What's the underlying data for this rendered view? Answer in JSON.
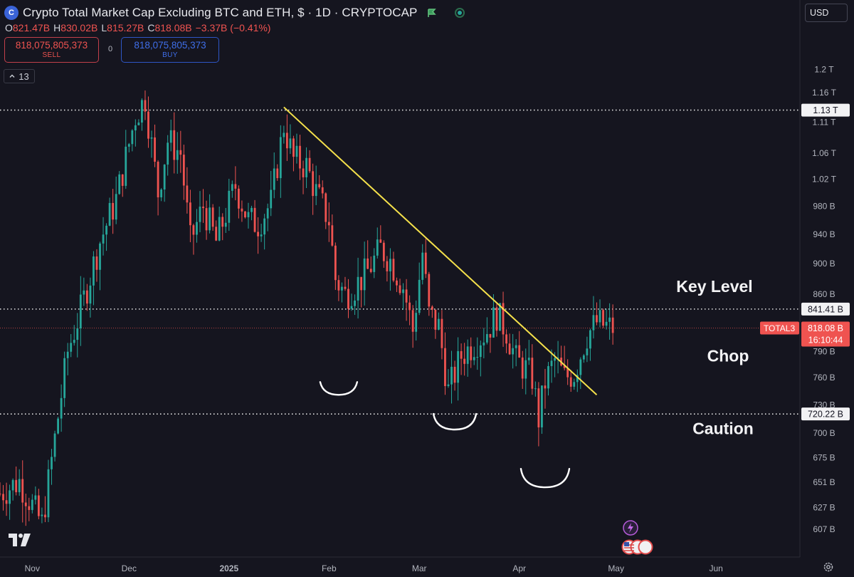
{
  "header": {
    "title": "Crypto Total Market Cap Excluding BTC and ETH, $ · 1D · CRYPTOCAP",
    "logo_letter": "C"
  },
  "ohlc": {
    "o_label": "O",
    "o": "821.47B",
    "h_label": "H",
    "h": "830.02B",
    "l_label": "L",
    "l": "815.27B",
    "c_label": "C",
    "c": "818.08B",
    "change": "−3.37B (−0.41%)"
  },
  "trade": {
    "sell_price": "818,075,805,373",
    "sell_label": "SELL",
    "spread": "0",
    "buy_price": "818,075,805,373",
    "buy_label": "BUY"
  },
  "indicators": {
    "count": "13"
  },
  "currency": {
    "label": "USD"
  },
  "colors": {
    "background": "#15151f",
    "up": "#26a69a",
    "down": "#ef5350",
    "trendline": "#f5e14b",
    "level_line": "#e6e6e6",
    "last_price": "#ef5350"
  },
  "chart_data": {
    "type": "candlestick",
    "title": "Crypto Total Market Cap Excluding BTC and ETH, $ · 1D · CRYPTOCAP",
    "xlabel": "",
    "ylabel": "",
    "y_scale": "log",
    "ylim": [
      590,
      1270
    ],
    "y_ticks": [
      {
        "v": 1200,
        "label": "1.2 T"
      },
      {
        "v": 1160,
        "label": "1.16 T"
      },
      {
        "v": 1110,
        "label": "1.11 T"
      },
      {
        "v": 1060,
        "label": "1.06 T"
      },
      {
        "v": 1020,
        "label": "1.02 T"
      },
      {
        "v": 980,
        "label": "980 B"
      },
      {
        "v": 940,
        "label": "940 B"
      },
      {
        "v": 900,
        "label": "900 B"
      },
      {
        "v": 860,
        "label": "860 B"
      },
      {
        "v": 790,
        "label": "790 B"
      },
      {
        "v": 760,
        "label": "760 B"
      },
      {
        "v": 730,
        "label": "730 B"
      },
      {
        "v": 700,
        "label": "700 B"
      },
      {
        "v": 675,
        "label": "675 B"
      },
      {
        "v": 651,
        "label": "651 B"
      },
      {
        "v": 627,
        "label": "627 B"
      },
      {
        "v": 607,
        "label": "607 B"
      }
    ],
    "x_ticks": [
      {
        "date": "2024-11-01",
        "label": "Nov",
        "bold": false
      },
      {
        "date": "2024-12-01",
        "label": "Dec",
        "bold": false
      },
      {
        "date": "2025-01-01",
        "label": "2025",
        "bold": true
      },
      {
        "date": "2025-02-01",
        "label": "Feb",
        "bold": false
      },
      {
        "date": "2025-03-01",
        "label": "Mar",
        "bold": false
      },
      {
        "date": "2025-04-01",
        "label": "Apr",
        "bold": false
      },
      {
        "date": "2025-05-01",
        "label": "May",
        "bold": false
      },
      {
        "date": "2025-06-01",
        "label": "Jun",
        "bold": false
      }
    ],
    "x_range": [
      "2024-10-22",
      "2025-06-27"
    ],
    "key_points": [
      {
        "date": "2024-10-22",
        "close": 640
      },
      {
        "date": "2024-10-28",
        "close": 652
      },
      {
        "date": "2024-11-04",
        "close": 612
      },
      {
        "date": "2024-11-06",
        "close": 651
      },
      {
        "date": "2024-11-12",
        "close": 790
      },
      {
        "date": "2024-11-16",
        "close": 840
      },
      {
        "date": "2024-11-22",
        "close": 930
      },
      {
        "date": "2024-11-27",
        "close": 990
      },
      {
        "date": "2024-12-03",
        "close": 1120
      },
      {
        "date": "2024-12-06",
        "close": 1150
      },
      {
        "date": "2024-12-10",
        "close": 1000
      },
      {
        "date": "2024-12-13",
        "close": 1080
      },
      {
        "date": "2024-12-17",
        "close": 1060
      },
      {
        "date": "2024-12-20",
        "close": 930
      },
      {
        "date": "2024-12-24",
        "close": 980
      },
      {
        "date": "2024-12-28",
        "close": 930
      },
      {
        "date": "2025-01-03",
        "close": 1010
      },
      {
        "date": "2025-01-07",
        "close": 960
      },
      {
        "date": "2025-01-10",
        "close": 955
      },
      {
        "date": "2025-01-14",
        "close": 985
      },
      {
        "date": "2025-01-18",
        "close": 1105
      },
      {
        "date": "2025-01-21",
        "close": 1050
      },
      {
        "date": "2025-01-25",
        "close": 1040
      },
      {
        "date": "2025-01-28",
        "close": 1000
      },
      {
        "date": "2025-02-01",
        "close": 960
      },
      {
        "date": "2025-02-03",
        "close": 880
      },
      {
        "date": "2025-02-06",
        "close": 860
      },
      {
        "date": "2025-02-09",
        "close": 870
      },
      {
        "date": "2025-02-13",
        "close": 890
      },
      {
        "date": "2025-02-17",
        "close": 920
      },
      {
        "date": "2025-02-20",
        "close": 905
      },
      {
        "date": "2025-02-24",
        "close": 870
      },
      {
        "date": "2025-02-27",
        "close": 815
      },
      {
        "date": "2025-03-02",
        "close": 915
      },
      {
        "date": "2025-03-04",
        "close": 835
      },
      {
        "date": "2025-03-07",
        "close": 820
      },
      {
        "date": "2025-03-10",
        "close": 745
      },
      {
        "date": "2025-03-14",
        "close": 785
      },
      {
        "date": "2025-03-18",
        "close": 800
      },
      {
        "date": "2025-03-22",
        "close": 815
      },
      {
        "date": "2025-03-25",
        "close": 835
      },
      {
        "date": "2025-03-28",
        "close": 815
      },
      {
        "date": "2025-03-31",
        "close": 780
      },
      {
        "date": "2025-04-03",
        "close": 770
      },
      {
        "date": "2025-04-05",
        "close": 760
      },
      {
        "date": "2025-04-07",
        "close": 715
      },
      {
        "date": "2025-04-09",
        "close": 755
      },
      {
        "date": "2025-04-12",
        "close": 780
      },
      {
        "date": "2025-04-15",
        "close": 760
      },
      {
        "date": "2025-04-18",
        "close": 765
      },
      {
        "date": "2025-04-22",
        "close": 810
      },
      {
        "date": "2025-04-25",
        "close": 825
      },
      {
        "date": "2025-04-28",
        "close": 820
      },
      {
        "date": "2025-04-30",
        "close": 818.08
      }
    ],
    "horizontal_levels": [
      {
        "value": 1130,
        "label": "1.13 T"
      },
      {
        "value": 841.41,
        "label": "841.41 B"
      },
      {
        "value": 720.22,
        "label": "720.22 B"
      }
    ],
    "last_price": {
      "value": 818.08,
      "label": "818.08 B",
      "symbol": "TOTAL3",
      "countdown": "16:10:44"
    },
    "trendline": [
      {
        "date": "2025-01-18",
        "value": 1135
      },
      {
        "date": "2025-04-25",
        "value": 741
      }
    ],
    "annotations": [
      {
        "text": "Key Level",
        "near_value": 870
      },
      {
        "text": "Chop",
        "near_value": 785
      },
      {
        "text": "Caution",
        "near_value": 705
      }
    ],
    "drawn_curves": [
      {
        "date": "2025-02-04",
        "value": 748
      },
      {
        "date": "2025-03-12",
        "value": 712
      },
      {
        "date": "2025-04-09",
        "value": 655
      }
    ]
  }
}
